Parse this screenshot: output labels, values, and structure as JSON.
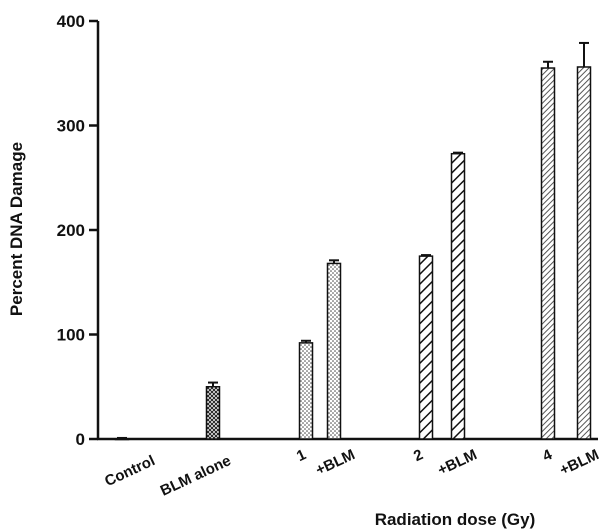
{
  "chart_data": {
    "type": "bar",
    "ylabel": "Percent DNA Damage",
    "xlabel": "Radiation dose (Gy)",
    "ylim": [
      0,
      400
    ],
    "yticks": [
      0,
      100,
      200,
      300,
      400
    ],
    "grid": false,
    "categories": [
      "Control",
      "BLM alone",
      "1",
      "+BLM",
      "2",
      "+BLM",
      "4",
      "+BLM"
    ],
    "values": [
      0,
      50,
      92,
      168,
      175,
      273,
      355,
      356
    ],
    "errors": [
      1,
      4,
      2,
      3,
      1,
      1,
      6,
      23
    ],
    "patterns": [
      "none",
      "crosshatch",
      "dots",
      "dots",
      "diagonal",
      "diagonal",
      "dense-diagonal",
      "dense-diagonal"
    ]
  }
}
